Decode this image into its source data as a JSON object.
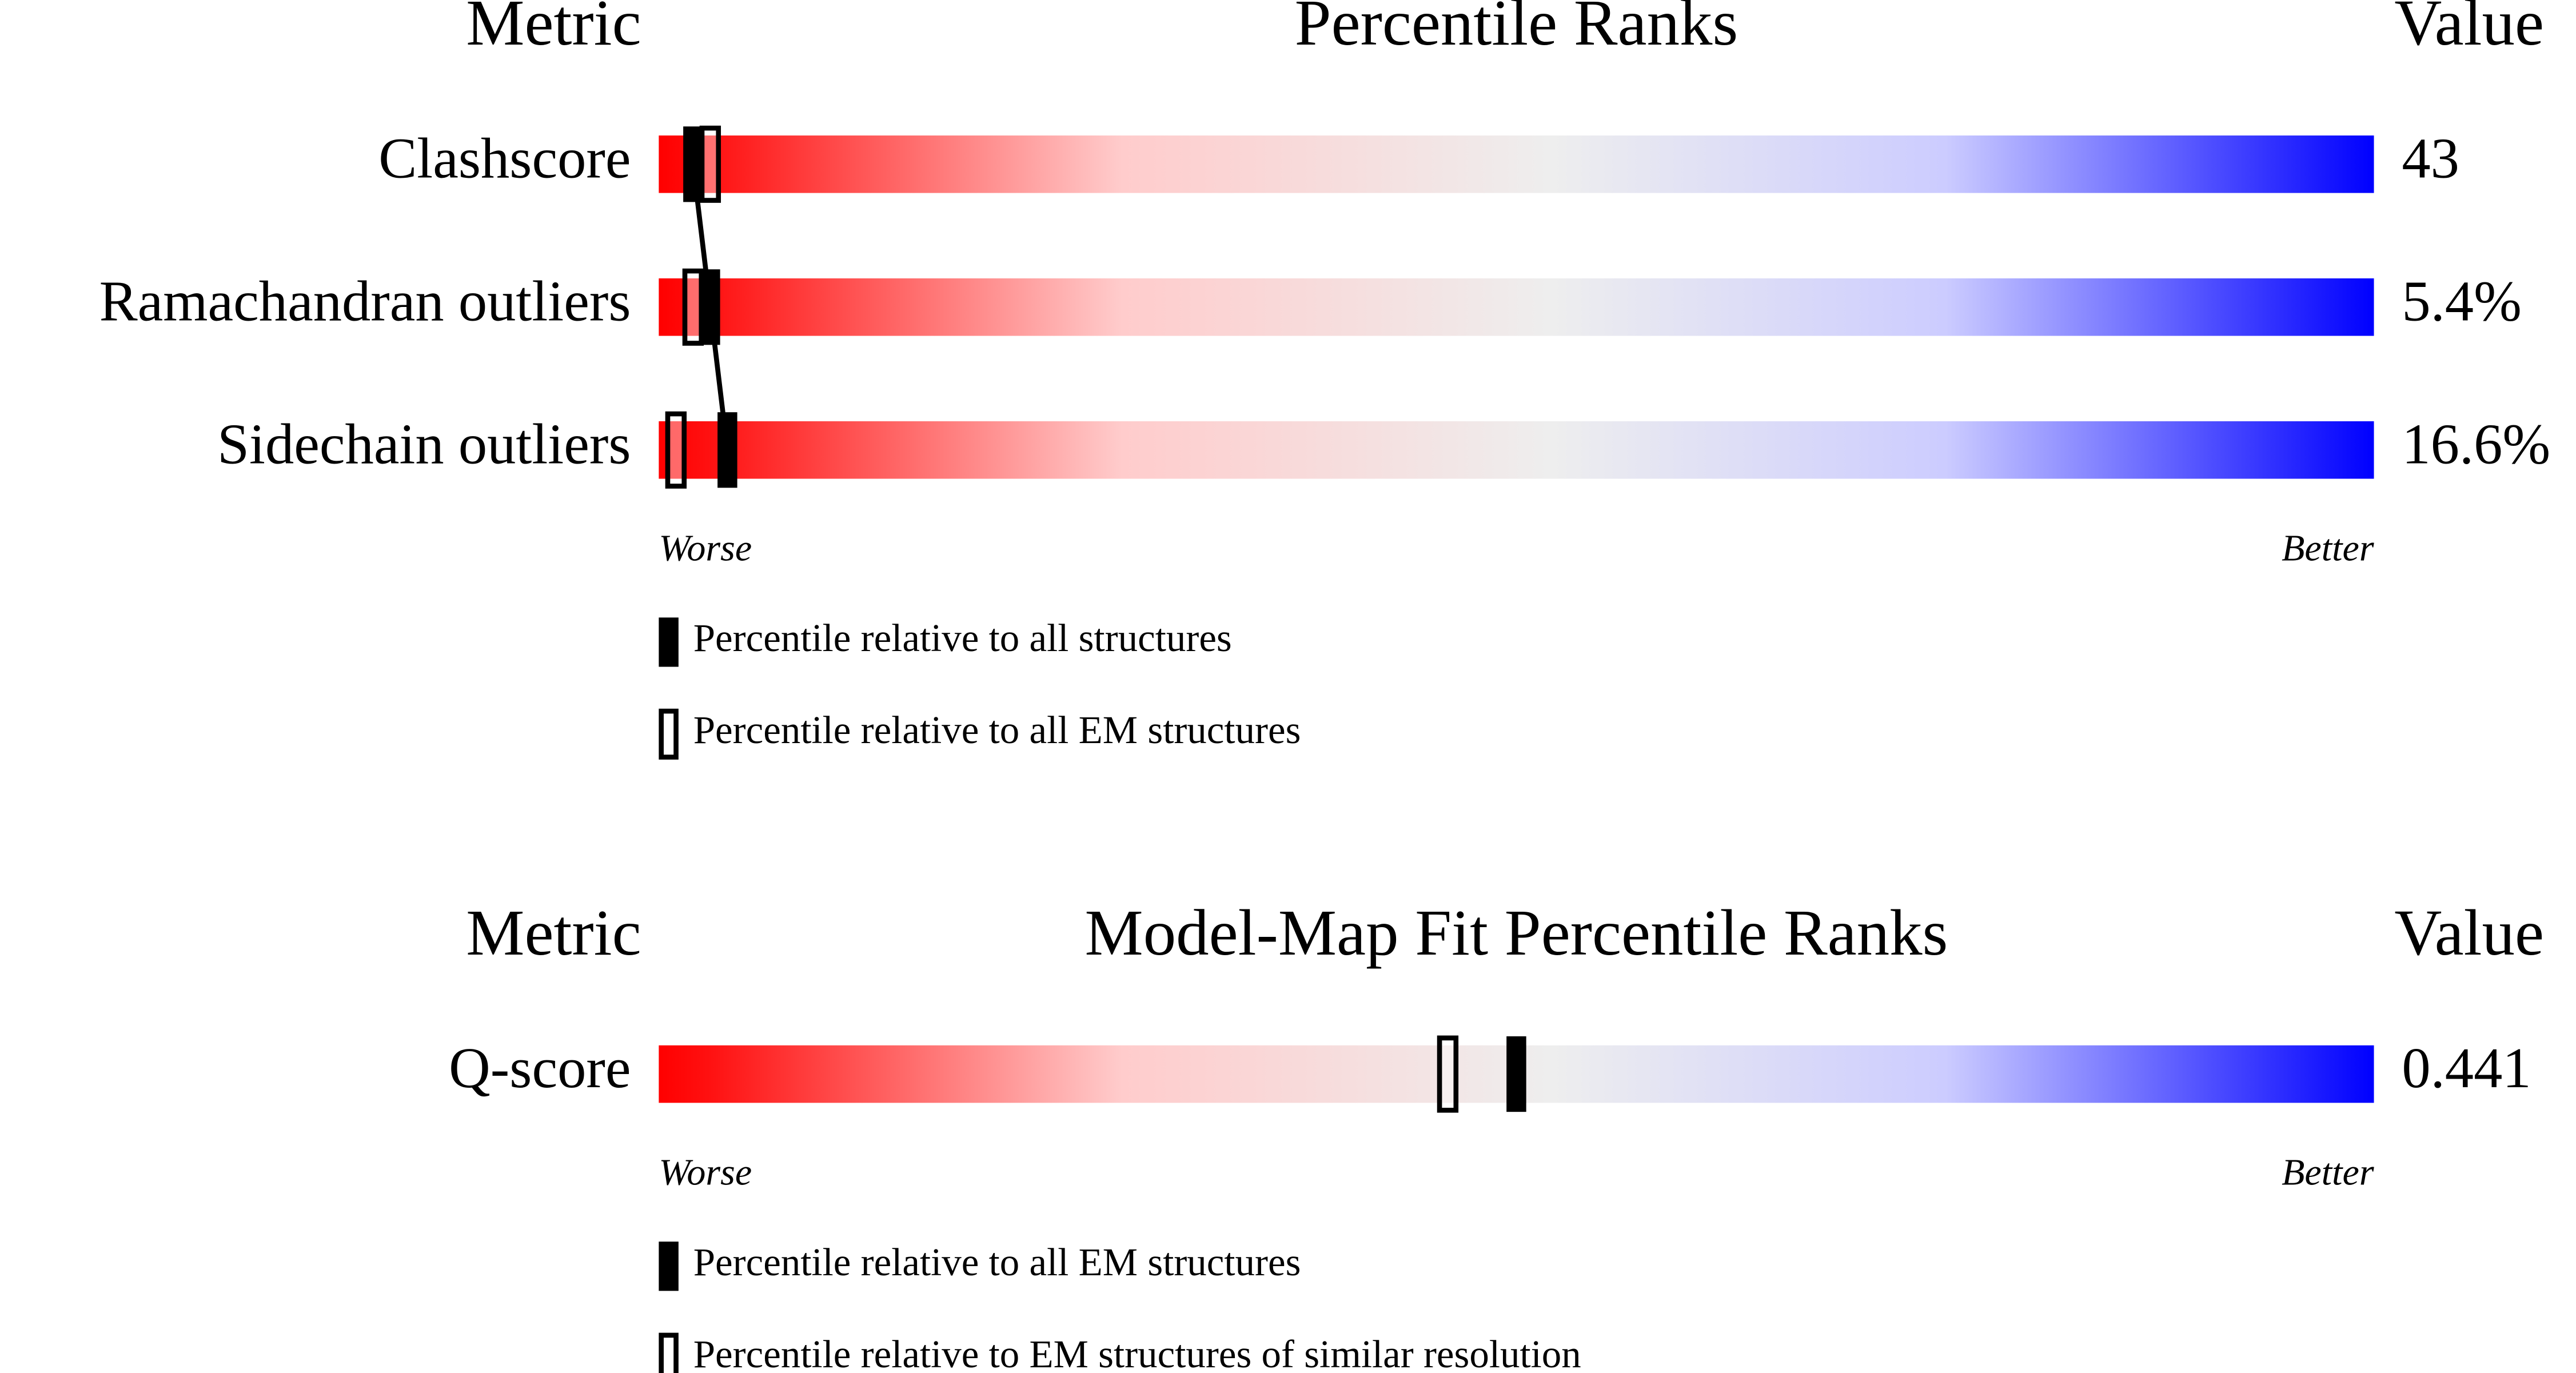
{
  "chart_data": [
    {
      "type": "percentile-slider",
      "headers": {
        "metric": "Metric",
        "title": "Percentile Ranks",
        "value": "Value"
      },
      "metrics": [
        {
          "name": "Clashscore",
          "value": "43",
          "percentile_all": 2,
          "percentile_em": 3
        },
        {
          "name": "Ramachandran outliers",
          "value": "5.4%",
          "percentile_all": 3,
          "percentile_em": 2
        },
        {
          "name": "Sidechain outliers",
          "value": "16.6%",
          "percentile_all": 4,
          "percentile_em": 1
        }
      ],
      "worse": "Worse",
      "better": "Better",
      "legend": {
        "filled": "Percentile relative to all structures",
        "hollow": "Percentile relative to all EM structures"
      },
      "xlim": [
        0,
        100
      ],
      "connect_filled": true
    },
    {
      "type": "percentile-slider",
      "headers": {
        "metric": "Metric",
        "title": "Model-Map Fit Percentile Ranks",
        "value": "Value"
      },
      "metrics": [
        {
          "name": "Q-score",
          "value": "0.441",
          "percentile_all": 50,
          "percentile_em": 46
        }
      ],
      "worse": "Worse",
      "better": "Better",
      "legend": {
        "filled": "Percentile relative to all EM structures",
        "hollow": "Percentile relative to EM structures of similar resolution"
      },
      "xlim": [
        0,
        100
      ],
      "connect_filled": false
    }
  ]
}
